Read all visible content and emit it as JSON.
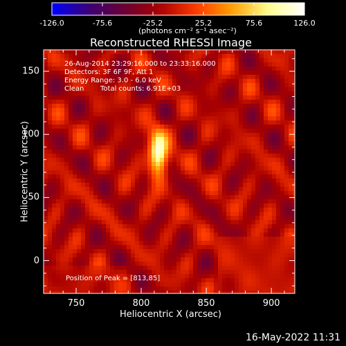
{
  "colorbar": {
    "tick_labels": [
      "-126.0",
      "-75.6",
      "-25.2",
      "25.2",
      "75.6",
      "126.0"
    ],
    "tick_values": [
      -126.0,
      -75.6,
      -25.2,
      25.2,
      75.6,
      126.0
    ],
    "units": "(photons cm⁻² s⁻¹ asec⁻²)"
  },
  "annotations": {
    "time_range": "26-Aug-2014 23:29:16.000 to 23:33:16.000",
    "detectors": "Detectors: 3F 6F 9F, Att 1",
    "energy": "Energy Range: 3.0 - 6.0 keV",
    "algorithm": "Clean",
    "total_counts": "Total counts: 6.91E+03",
    "peak": "Position of Peak = [813,85]"
  },
  "footer": {
    "timestamp": "16-May-2022 11:31"
  },
  "chart_data": {
    "type": "heatmap",
    "title": "Reconstructed RHESSI Image",
    "xlabel": "Heliocentric X (arcsec)",
    "ylabel": "Heliocentric Y (arcsec)",
    "xlim": [
      725,
      918
    ],
    "ylim": [
      -26,
      167
    ],
    "x_ticks": [
      "750",
      "800",
      "850",
      "900"
    ],
    "x_tick_values": [
      750,
      800,
      850,
      900
    ],
    "y_ticks": [
      "0",
      "50",
      "100",
      "150"
    ],
    "y_tick_values": [
      0,
      50,
      100,
      150
    ],
    "value_range": [
      -126.0,
      126.0
    ],
    "colormap": [
      "#0000ff",
      "#3a0077",
      "#6a0035",
      "#a80000",
      "#ff3a00",
      "#ffa000",
      "#ffff90",
      "#ffffff"
    ],
    "peak": {
      "x": 813,
      "y": 85,
      "value": 126.0
    }
  }
}
